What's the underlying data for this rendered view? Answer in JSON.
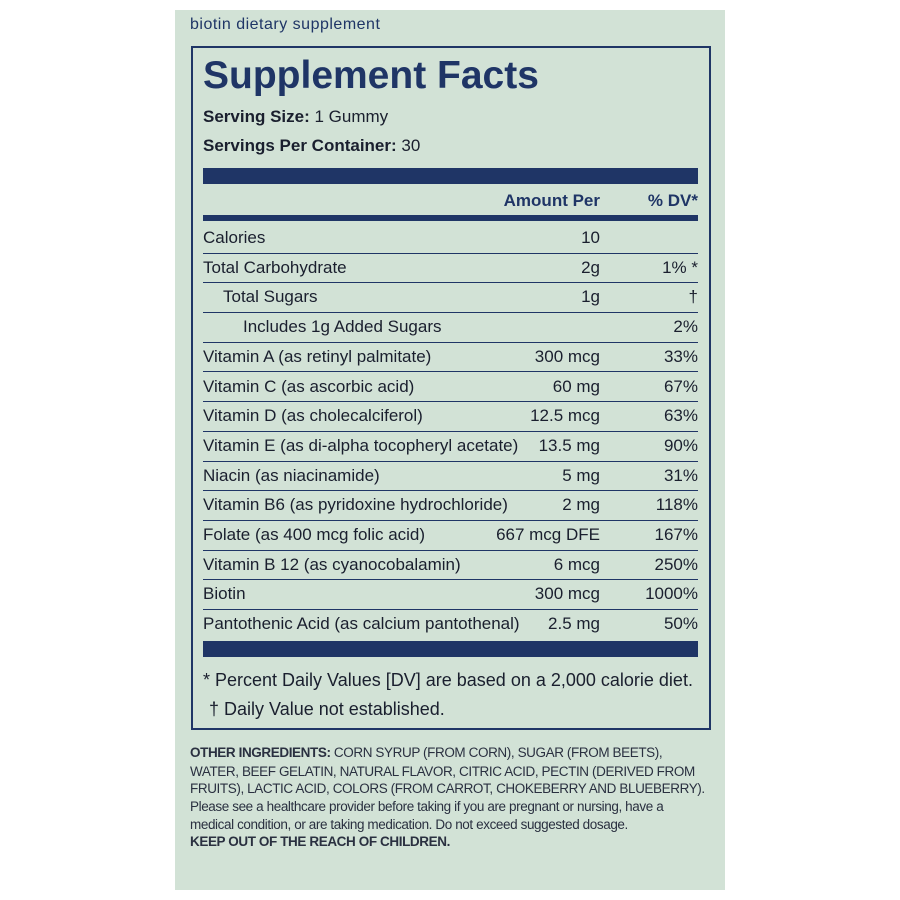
{
  "header": "biotin dietary supplement",
  "panel": {
    "title": "Supplement Facts",
    "serving_size": {
      "label": "Serving Size:",
      "value": "1 Gummy"
    },
    "servings_per_container": {
      "label": "Servings Per Container:",
      "value": "30"
    }
  },
  "table": {
    "columns": [
      "Amount Per",
      "% DV*"
    ],
    "rows": [
      [
        "Calories",
        "10",
        ""
      ],
      [
        "Total Carbohydrate",
        "2g",
        "1% *"
      ],
      [
        "Total Sugars",
        "1g",
        "†"
      ],
      [
        "Includes 1g Added Sugars",
        "",
        "2%"
      ],
      [
        "Vitamin A (as retinyl palmitate)",
        "300 mcg",
        "33%"
      ],
      [
        "Vitamin C (as ascorbic acid)",
        "60 mg",
        "67%"
      ],
      [
        "Vitamin D (as cholecalciferol)",
        "12.5 mcg",
        "63%"
      ],
      [
        "Vitamin E (as di-alpha tocopheryl acetate)",
        "13.5 mg",
        "90%"
      ],
      [
        "Niacin (as niacinamide)",
        "5 mg",
        "31%"
      ],
      [
        "Vitamin B6 (as pyridoxine hydrochloride)",
        "2 mg",
        "118%"
      ],
      [
        "Folate (as 400 mcg folic acid)",
        "667 mcg DFE",
        "167%"
      ],
      [
        "Vitamin B 12 (as cyanocobalamin)",
        "6 mcg",
        "250%"
      ],
      [
        "Biotin",
        "300 mcg",
        "1000%"
      ],
      [
        "Pantothenic Acid (as calcium pantothenal)",
        "2.5 mg",
        "50%"
      ]
    ]
  },
  "footnotes": [
    "* Percent Daily Values [DV] are based on a 2,000 calorie diet.",
    "† Daily Value not established."
  ],
  "other_ingredients": {
    "label": "OTHER INGREDIENTS:",
    "lines": [
      "CORN SYRUP (FROM CORN), SUGAR (FROM BEETS),",
      "WATER, BEEF GELATIN, NATURAL FLAVOR, CITRIC ACID, PECTIN (DERIVED FROM",
      "FRUITS), LACTIC ACID, COLORS (FROM CARROT, CHOKEBERRY AND BLUEBERRY).",
      "Please see a healthcare provider before taking if you are pregnant or nursing, have a",
      "medical condition, or are taking medication. Do not exceed suggested dosage."
    ],
    "warning": "KEEP OUT OF THE REACH OF CHILDREN."
  }
}
